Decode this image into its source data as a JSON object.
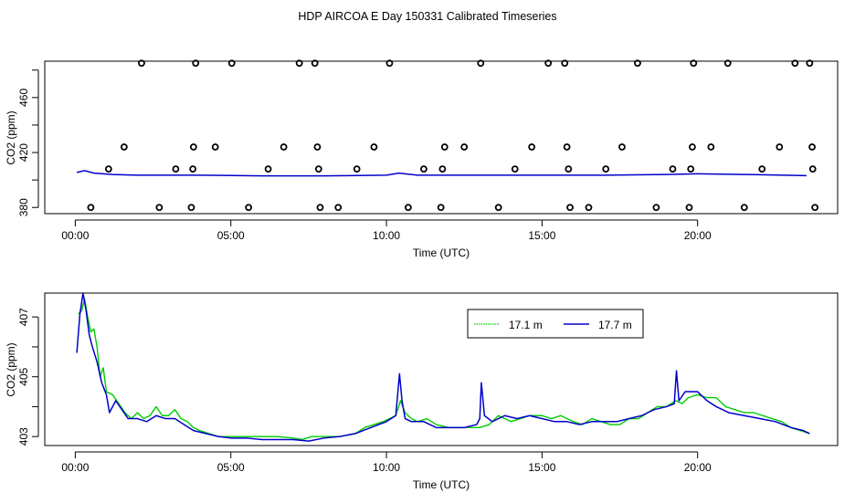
{
  "title": "HDP AIRCOA E  Day 150331  Calibrated Timeseries",
  "chart_data": [
    {
      "type": "scatter",
      "xlabel": "Time (UTC)",
      "ylabel": "CO2 (ppm)",
      "x_ticks": [
        0,
        5,
        10,
        15,
        20
      ],
      "x_tick_labels": [
        "00:00",
        "05:00",
        "10:00",
        "15:00",
        "20:00"
      ],
      "y_ticks": [
        380,
        420,
        460
      ],
      "y_tick_labels": [
        "380",
        "420",
        "460"
      ],
      "xlim": [
        -0.98,
        24.5
      ],
      "ylim": [
        375.5,
        486.5
      ],
      "legend": "none",
      "colors": {
        "points": "#000000",
        "line_17_7": "#0000cc",
        "line_17_1": "#00cc00"
      },
      "points": {
        "x": [
          0.5,
          1.07,
          1.57,
          2.13,
          2.7,
          3.23,
          3.73,
          3.78,
          3.8,
          3.87,
          4.5,
          5.03,
          5.57,
          6.2,
          6.7,
          7.2,
          7.7,
          7.78,
          7.82,
          7.87,
          8.45,
          9.05,
          9.6,
          10.1,
          10.7,
          11.2,
          11.75,
          11.8,
          11.87,
          12.5,
          13.03,
          13.6,
          14.13,
          14.67,
          15.2,
          15.73,
          15.8,
          15.85,
          15.9,
          16.5,
          17.05,
          17.57,
          18.07,
          18.67,
          19.2,
          19.73,
          19.78,
          19.83,
          19.87,
          20.43,
          20.97,
          21.5,
          22.07,
          22.63,
          23.13,
          23.6,
          23.68,
          23.7,
          23.77
        ],
        "y": [
          380,
          408,
          424,
          485,
          380,
          408,
          380,
          408,
          424,
          485,
          424,
          485,
          380,
          408,
          424,
          485,
          485,
          424,
          408,
          380,
          380,
          408,
          424,
          485,
          380,
          408,
          380,
          408,
          424,
          424,
          485,
          380,
          408,
          424,
          485,
          485,
          424,
          408,
          380,
          380,
          408,
          424,
          485,
          380,
          408,
          380,
          408,
          424,
          485,
          424,
          485,
          380,
          408,
          424,
          485,
          485,
          424,
          408,
          380
        ]
      },
      "series": [
        {
          "values_note": "",
          "x": [
            0.05,
            0.3,
            0.6,
            1.2,
            2.0,
            4.0,
            6.0,
            8.0,
            10.0,
            10.4,
            11.0,
            13.0,
            15.0,
            17.0,
            19.0,
            20.0,
            22.0,
            23.5
          ],
          "y": [
            405.5,
            406.8,
            405,
            404,
            403.5,
            403.5,
            403,
            403,
            403.5,
            405,
            403.5,
            403.5,
            403.5,
            403.5,
            404,
            404.5,
            403.8,
            403.2
          ]
        }
      ]
    },
    {
      "type": "line",
      "xlabel": "Time (UTC)",
      "ylabel": "CO2 (ppm)",
      "x_ticks": [
        0,
        5,
        10,
        15,
        20
      ],
      "x_tick_labels": [
        "00:00",
        "05:00",
        "10:00",
        "15:00",
        "20:00"
      ],
      "y_ticks": [
        403,
        404,
        405,
        406,
        407
      ],
      "y_tick_labels": [
        "403",
        "",
        "405",
        "",
        "407"
      ],
      "xlim": [
        -0.98,
        24.5
      ],
      "ylim": [
        402.7,
        407.8
      ],
      "legend": "top-center",
      "series": [
        {
          "name": "17.1 m",
          "color": "#00cc00",
          "x": [
            0.1,
            0.2,
            0.3,
            0.4,
            0.5,
            0.6,
            0.7,
            0.8,
            0.9,
            1.0,
            1.2,
            1.4,
            1.6,
            1.8,
            2.0,
            2.2,
            2.4,
            2.6,
            2.8,
            3.0,
            3.2,
            3.4,
            3.6,
            3.8,
            4.0,
            4.3,
            4.6,
            5.0,
            5.5,
            6.0,
            6.5,
            7.0,
            7.3,
            7.6,
            8.0,
            8.5,
            9.0,
            9.3,
            9.6,
            9.9,
            10.1,
            10.3,
            10.45,
            10.6,
            10.8,
            11.0,
            11.3,
            11.6,
            12.0,
            12.5,
            13.0,
            13.3,
            13.6,
            14.0,
            14.3,
            14.6,
            15.0,
            15.3,
            15.6,
            16.0,
            16.3,
            16.6,
            16.9,
            17.2,
            17.5,
            17.8,
            18.1,
            18.4,
            18.7,
            19.0,
            19.3,
            19.5,
            19.7,
            20.0,
            20.3,
            20.6,
            20.9,
            21.2,
            21.5,
            21.8,
            22.1,
            22.4,
            22.7,
            23.0,
            23.3,
            23.6
          ],
          "y": [
            407.1,
            407.2,
            407.6,
            407.0,
            406.5,
            406.6,
            406.0,
            405.0,
            405.3,
            404.5,
            404.4,
            404.1,
            403.8,
            403.6,
            403.8,
            403.6,
            403.7,
            404.0,
            403.7,
            403.7,
            403.9,
            403.6,
            403.5,
            403.3,
            403.2,
            403.1,
            403.0,
            403.0,
            403.0,
            403.0,
            403.0,
            402.95,
            402.9,
            403.0,
            403.0,
            403.0,
            403.1,
            403.3,
            403.4,
            403.5,
            403.6,
            403.7,
            404.2,
            403.8,
            403.6,
            403.5,
            403.6,
            403.4,
            403.3,
            403.3,
            403.3,
            403.4,
            403.7,
            403.5,
            403.6,
            403.7,
            403.7,
            403.6,
            403.7,
            403.5,
            403.4,
            403.6,
            403.5,
            403.4,
            403.4,
            403.6,
            403.6,
            403.8,
            404.0,
            404.0,
            404.2,
            404.1,
            404.3,
            404.4,
            404.3,
            404.3,
            404.0,
            403.9,
            403.8,
            403.8,
            403.7,
            403.6,
            403.5,
            403.3,
            403.2,
            403.1
          ]
        },
        {
          "name": "17.7 m",
          "color": "#0000cc",
          "x": [
            0.05,
            0.15,
            0.25,
            0.35,
            0.45,
            0.55,
            0.7,
            0.85,
            1.0,
            1.1,
            1.3,
            1.5,
            1.7,
            2.0,
            2.3,
            2.6,
            2.9,
            3.2,
            3.5,
            3.8,
            4.2,
            4.6,
            5.0,
            5.5,
            6.0,
            6.5,
            7.0,
            7.5,
            8.0,
            8.5,
            9.0,
            9.5,
            10.0,
            10.3,
            10.42,
            10.5,
            10.6,
            10.8,
            11.2,
            11.6,
            12.0,
            12.5,
            12.9,
            13.0,
            13.05,
            13.15,
            13.4,
            13.8,
            14.2,
            14.6,
            15.0,
            15.4,
            15.8,
            16.2,
            16.6,
            17.0,
            17.4,
            17.8,
            18.2,
            18.6,
            19.0,
            19.25,
            19.32,
            19.4,
            19.6,
            19.8,
            20.0,
            20.3,
            20.6,
            21.0,
            21.5,
            22.0,
            22.5,
            23.0,
            23.4,
            23.6
          ],
          "y": [
            405.8,
            407.1,
            407.8,
            407.2,
            406.4,
            406.0,
            405.5,
            404.8,
            404.4,
            403.8,
            404.2,
            403.9,
            403.6,
            403.6,
            403.5,
            403.7,
            403.6,
            403.6,
            403.4,
            403.2,
            403.1,
            403.0,
            402.95,
            402.95,
            402.9,
            402.9,
            402.9,
            402.85,
            402.95,
            403.0,
            403.1,
            403.3,
            403.5,
            403.7,
            405.1,
            404.2,
            403.6,
            403.5,
            403.5,
            403.3,
            403.3,
            403.3,
            403.4,
            403.6,
            404.8,
            403.7,
            403.5,
            403.7,
            403.6,
            403.7,
            403.6,
            403.5,
            403.5,
            403.4,
            403.5,
            403.5,
            403.5,
            403.6,
            403.7,
            403.9,
            404.0,
            404.1,
            405.2,
            404.2,
            404.5,
            404.5,
            404.5,
            404.2,
            404.0,
            403.8,
            403.7,
            403.6,
            403.5,
            403.3,
            403.2,
            403.1
          ]
        }
      ]
    }
  ]
}
